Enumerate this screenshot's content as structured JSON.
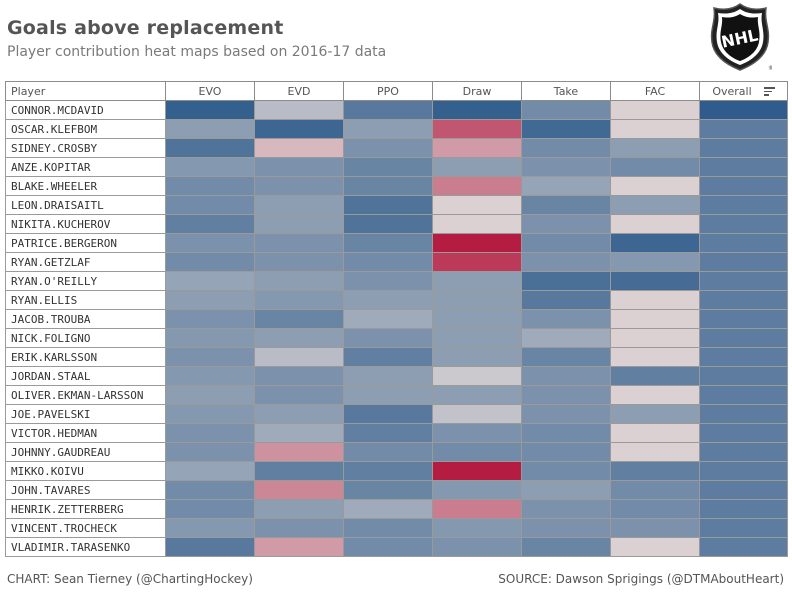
{
  "header": {
    "title": "Goals above replacement",
    "subtitle": "Player contribution heat maps based on 2016-17 data"
  },
  "logo": {
    "icon": "nhl-shield-icon",
    "text": "NHL"
  },
  "footer": {
    "credit": "CHART: Sean Tierney (@ChartingHockey)",
    "source": "SOURCE: Dawson Sprigings (@DTMAboutHeart)"
  },
  "chart_data": {
    "type": "heatmap",
    "row_header": "Player",
    "columns": [
      "EVO",
      "EVD",
      "PPO",
      "Draw",
      "Take",
      "FAC",
      "Overall"
    ],
    "color_scale": {
      "negative": "#b2123a",
      "neutral": "#ddd5d5",
      "positive": "#2b5a8a",
      "range": [
        -1,
        1
      ]
    },
    "rows": [
      "CONNOR.MCDAVID",
      "OSCAR.KLEFBOM",
      "SIDNEY.CROSBY",
      "ANZE.KOPITAR",
      "BLAKE.WHEELER",
      "LEON.DRAISAITL",
      "NIKITA.KUCHEROV",
      "PATRICE.BERGERON",
      "RYAN.GETZLAF",
      "RYAN.O'REILLY",
      "RYAN.ELLIS",
      "JACOB.TROUBA",
      "NICK.FOLIGNO",
      "ERIK.KARLSSON",
      "JORDAN.STAAL",
      "OLIVER.EKMAN-LARSSON",
      "JOE.PAVELSKI",
      "VICTOR.HEDMAN",
      "JOHNNY.GAUDREAU",
      "MIKKO.KOIVU",
      "JOHN.TAVARES",
      "HENRIK.ZETTERBERG",
      "VINCENT.TROCHECK",
      "VLADIMIR.TARASENKO"
    ],
    "values": [
      [
        0.95,
        0.2,
        0.75,
        0.95,
        0.6,
        -0.02,
        0.98
      ],
      [
        0.45,
        0.9,
        0.45,
        -0.65,
        0.88,
        -0.02,
        0.72
      ],
      [
        0.8,
        -0.15,
        0.55,
        -0.3,
        0.6,
        0.45,
        0.72
      ],
      [
        0.5,
        0.55,
        0.65,
        0.45,
        0.55,
        0.6,
        0.72
      ],
      [
        0.6,
        0.55,
        0.65,
        -0.45,
        0.4,
        -0.02,
        0.72
      ],
      [
        0.6,
        0.45,
        0.8,
        -0.02,
        0.65,
        0.45,
        0.72
      ],
      [
        0.7,
        0.45,
        0.8,
        -0.02,
        0.55,
        -0.02,
        0.72
      ],
      [
        0.55,
        0.55,
        0.65,
        -0.95,
        0.6,
        0.9,
        0.72
      ],
      [
        0.6,
        0.55,
        0.6,
        -0.8,
        0.55,
        0.5,
        0.72
      ],
      [
        0.4,
        0.45,
        0.55,
        0.45,
        0.82,
        0.85,
        0.72
      ],
      [
        0.45,
        0.5,
        0.45,
        0.45,
        0.75,
        -0.02,
        0.72
      ],
      [
        0.55,
        0.65,
        0.35,
        0.45,
        0.55,
        -0.02,
        0.72
      ],
      [
        0.5,
        0.45,
        0.55,
        0.45,
        0.35,
        -0.02,
        0.72
      ],
      [
        0.55,
        0.2,
        0.7,
        0.45,
        0.65,
        -0.02,
        0.72
      ],
      [
        0.5,
        0.55,
        0.45,
        0.1,
        0.55,
        0.7,
        0.72
      ],
      [
        0.45,
        0.55,
        0.45,
        0.45,
        0.55,
        -0.02,
        0.72
      ],
      [
        0.5,
        0.45,
        0.75,
        0.15,
        0.55,
        0.45,
        0.72
      ],
      [
        0.55,
        0.35,
        0.7,
        0.55,
        0.6,
        -0.02,
        0.72
      ],
      [
        0.55,
        -0.35,
        0.6,
        0.6,
        0.6,
        -0.02,
        0.72
      ],
      [
        0.4,
        0.7,
        0.7,
        -0.95,
        0.6,
        0.7,
        0.72
      ],
      [
        0.6,
        -0.4,
        0.65,
        0.5,
        0.45,
        0.6,
        0.72
      ],
      [
        0.6,
        0.45,
        0.35,
        -0.45,
        0.55,
        0.6,
        0.72
      ],
      [
        0.5,
        0.55,
        0.6,
        0.5,
        0.55,
        0.55,
        0.72
      ],
      [
        0.75,
        -0.3,
        0.6,
        0.55,
        0.65,
        -0.02,
        0.72
      ]
    ],
    "sort": {
      "column": "Overall",
      "order": "descending",
      "icon": "sort-descending-icon"
    }
  }
}
